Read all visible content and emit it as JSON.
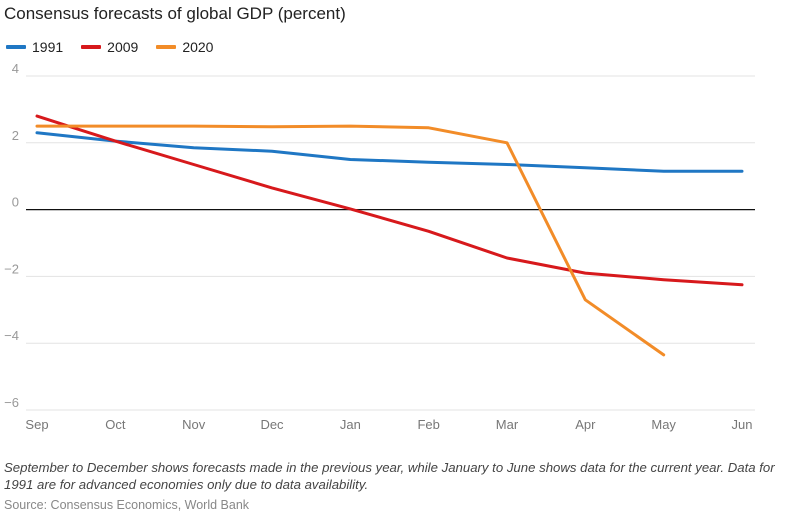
{
  "title": "Consensus forecasts of global GDP (percent)",
  "note": "September to December shows forecasts made in the previous year, while January to June shows data for the current year. Data for 1991 are for advanced economies only due to data availability.",
  "source": "Source: Consensus Economics, World Bank",
  "colors": {
    "1991": "#1f77c4",
    "2009": "#d7191c",
    "2020": "#f28c28",
    "grid": "#e3e3e3",
    "zero": "#111111"
  },
  "chart_data": {
    "type": "line",
    "title": "Consensus forecasts of global GDP (percent)",
    "xlabel": "",
    "ylabel": "",
    "categories": [
      "Sep",
      "Oct",
      "Nov",
      "Dec",
      "Jan",
      "Feb",
      "Mar",
      "Apr",
      "May",
      "Jun"
    ],
    "yticks": [
      4,
      2,
      0,
      -2,
      -4,
      -6
    ],
    "ytick_labels": [
      "4",
      "2",
      "0",
      "−2",
      "−4",
      "−6"
    ],
    "ylim": [
      -6,
      4
    ],
    "grid": true,
    "legend_position": "top-left",
    "series": [
      {
        "name": "1991",
        "color": "#1f77c4",
        "values": [
          2.3,
          2.05,
          1.85,
          1.75,
          1.5,
          1.42,
          1.35,
          1.25,
          1.15,
          1.15
        ]
      },
      {
        "name": "2009",
        "color": "#d7191c",
        "values": [
          2.8,
          2.05,
          1.35,
          0.65,
          0.02,
          -0.65,
          -1.45,
          -1.9,
          -2.1,
          -2.25
        ]
      },
      {
        "name": "2020",
        "color": "#f28c28",
        "values": [
          2.5,
          2.5,
          2.5,
          2.48,
          2.5,
          2.45,
          2.0,
          -2.7,
          -4.35,
          null
        ]
      }
    ]
  }
}
